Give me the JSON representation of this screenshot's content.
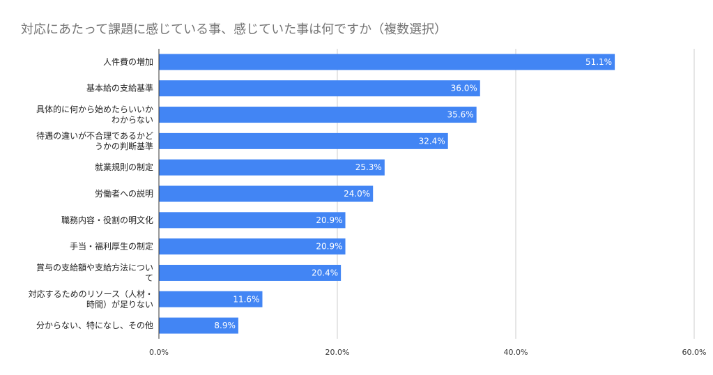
{
  "chart_data": {
    "type": "bar",
    "orientation": "horizontal",
    "title": "対応にあたって課題に感じている事、感じていた事は何ですか（複数選択）",
    "categories": [
      [
        "人件費の増加"
      ],
      [
        "基本給の支給基準"
      ],
      [
        "具体的に何から始めたらいいか",
        "わからない"
      ],
      [
        "待遇の違いが不合理であるかど",
        "うかの判断基準"
      ],
      [
        "就業規則の制定"
      ],
      [
        "労働者への説明"
      ],
      [
        "職務内容・役割の明文化"
      ],
      [
        "手当・福利厚生の制定"
      ],
      [
        "賞与の支給額や支給方法につい",
        "て"
      ],
      [
        "対応するためのリソース（人材・",
        "時間）が足りない"
      ],
      [
        "分からない、特になし、その他"
      ]
    ],
    "values": [
      51.1,
      36.0,
      35.6,
      32.4,
      25.3,
      24.0,
      20.9,
      20.9,
      20.4,
      11.6,
      8.9
    ],
    "data_labels": [
      "51.1%",
      "36.0%",
      "35.6%",
      "32.4%",
      "25.3%",
      "24.0%",
      "20.9%",
      "20.9%",
      "20.4%",
      "11.6%",
      "8.9%"
    ],
    "xlim": [
      0,
      60
    ],
    "x_ticks": [
      0,
      20,
      40,
      60
    ],
    "x_tick_labels": [
      "0.0%",
      "20.0%",
      "40.0%",
      "60.0%"
    ],
    "xlabel": "",
    "ylabel": "",
    "grid": true,
    "legend": "none",
    "bar_color": "#4285f4",
    "grid_color": "#cccccc"
  }
}
